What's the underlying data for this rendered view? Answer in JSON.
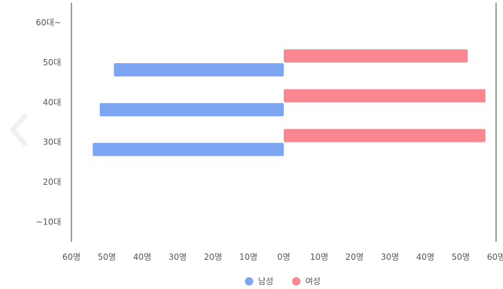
{
  "nav": {
    "prev_icon": "chevron-left-icon"
  },
  "chart_data": {
    "type": "bar",
    "orientation": "horizontal",
    "diverging": true,
    "categories": [
      "60대~",
      "50대",
      "40대",
      "30대",
      "20대",
      "~10대"
    ],
    "series": [
      {
        "name": "남성",
        "color": "#7ea5f4",
        "values": [
          0,
          48,
          52,
          54,
          0,
          0
        ]
      },
      {
        "name": "여성",
        "color": "#f98791",
        "values": [
          0,
          52,
          57,
          57,
          0,
          0
        ]
      }
    ],
    "x_ticks": [
      "60명",
      "50명",
      "40명",
      "30명",
      "20명",
      "10명",
      "0명",
      "10명",
      "20명",
      "30명",
      "40명",
      "50명",
      "60명"
    ],
    "xlim": [
      -60,
      60
    ],
    "legend_position": "bottom",
    "grid": false
  }
}
